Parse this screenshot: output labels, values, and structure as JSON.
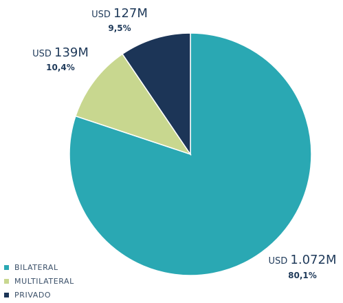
{
  "chart_data": {
    "type": "pie",
    "title": "",
    "slices": [
      {
        "name": "BILATERAL",
        "currency": "USD",
        "amount": "1.072M",
        "percent_label": "80,1%",
        "percent": 80.1,
        "color": "#2aa8b3"
      },
      {
        "name": "MULTILATERAL",
        "currency": "USD",
        "amount": "139M",
        "percent_label": "10,4%",
        "percent": 10.4,
        "color": "#c8d78f"
      },
      {
        "name": "PRIVADO",
        "currency": "USD",
        "amount": "127M",
        "percent_label": "9,5%",
        "percent": 9.5,
        "color": "#1c3557"
      }
    ],
    "legend_position": "bottom-left"
  }
}
